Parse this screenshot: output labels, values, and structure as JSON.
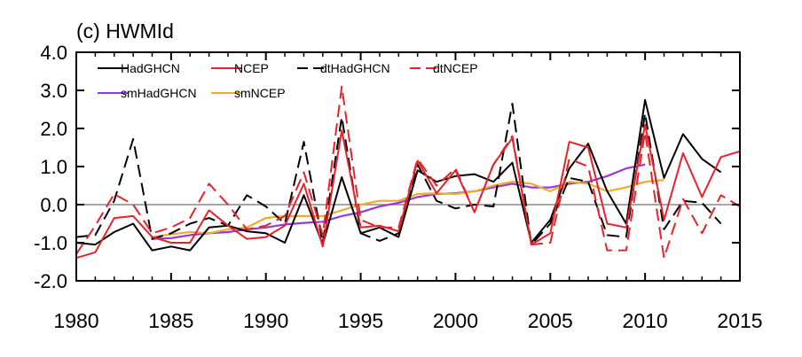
{
  "chart_data": {
    "type": "line",
    "title": "(c) HWMId",
    "xlabel": "",
    "ylabel": "",
    "xlim": [
      1980,
      2015
    ],
    "ylim": [
      -2.0,
      4.0
    ],
    "xticks": [
      1980,
      1985,
      1990,
      1995,
      2000,
      2005,
      2010,
      2015
    ],
    "xtick_labels": [
      "1980",
      "1985",
      "1990",
      "1995",
      "2000",
      "2005",
      "2010",
      "2015"
    ],
    "yticks": [
      -2.0,
      -1.0,
      0.0,
      1.0,
      2.0,
      3.0,
      4.0
    ],
    "ytick_labels": [
      "-2.0",
      "-1.0",
      "0.0",
      "1.0",
      "2.0",
      "3.0",
      "4.0"
    ],
    "zero_line": true,
    "grid": false,
    "legend_position": "top-left",
    "colors": {
      "black": "#000000",
      "red": "#e8222b",
      "purple": "#9a36e0",
      "orange": "#f0ab2a",
      "zero_line": "#888888"
    },
    "series": [
      {
        "name": "HadGHCN",
        "color": "#000000",
        "dash": "solid",
        "x": [
          1980,
          1981,
          1982,
          1983,
          1984,
          1985,
          1986,
          1987,
          1988,
          1989,
          1990,
          1991,
          1992,
          1993,
          1994,
          1995,
          1996,
          1997,
          1998,
          1999,
          2000,
          2001,
          2002,
          2003,
          2004,
          2005,
          2006,
          2007,
          2008,
          2009,
          2010,
          2011,
          2012,
          2013,
          2014
        ],
        "y": [
          -1.0,
          -1.05,
          -0.72,
          -0.5,
          -1.2,
          -1.1,
          -1.2,
          -0.6,
          -0.55,
          -0.7,
          -0.75,
          -1.0,
          0.25,
          -1.05,
          0.72,
          -0.75,
          -0.6,
          -0.85,
          0.9,
          0.6,
          0.75,
          0.8,
          0.6,
          1.1,
          -1.0,
          -0.4,
          0.95,
          1.6,
          0.35,
          -0.5,
          2.75,
          0.7,
          1.85,
          1.2,
          0.85
        ]
      },
      {
        "name": "NCEP",
        "color": "#e8222b",
        "dash": "solid",
        "x": [
          1980,
          1981,
          1982,
          1983,
          1984,
          1985,
          1986,
          1987,
          1988,
          1989,
          1990,
          1991,
          1992,
          1993,
          1994,
          1995,
          1996,
          1997,
          1998,
          1999,
          2000,
          2001,
          2002,
          2003,
          2004,
          2005,
          2006,
          2007,
          2008,
          2009,
          2010,
          2011,
          2012,
          2013,
          2014,
          2015
        ],
        "y": [
          -1.4,
          -1.25,
          -0.35,
          -0.3,
          -0.85,
          -1.0,
          -1.0,
          -0.15,
          -0.55,
          -0.9,
          -0.85,
          -0.55,
          0.55,
          -1.1,
          1.95,
          -0.6,
          -0.55,
          -0.7,
          1.15,
          0.3,
          0.9,
          -0.2,
          1.05,
          1.75,
          -1.05,
          -0.75,
          1.65,
          1.5,
          -0.5,
          -0.6,
          2.1,
          -0.4,
          1.35,
          0.2,
          1.25,
          1.4
        ]
      },
      {
        "name": "dtHadGHCN",
        "color": "#000000",
        "dash": "dashed",
        "x": [
          1980,
          1981,
          1982,
          1983,
          1984,
          1985,
          1986,
          1987,
          1988,
          1989,
          1990,
          1991,
          1992,
          1993,
          1994,
          1995,
          1996,
          1997,
          1998,
          1999,
          2000,
          2001,
          2002,
          2003,
          2004,
          2005,
          2006,
          2007,
          2008,
          2009,
          2010,
          2011,
          2012,
          2013,
          2014
        ],
        "y": [
          -0.85,
          -0.8,
          0.1,
          1.72,
          -0.9,
          -0.75,
          -0.5,
          -0.35,
          -0.55,
          0.25,
          -0.05,
          -0.5,
          1.65,
          -1.0,
          2.3,
          -0.75,
          -0.95,
          -0.75,
          1.05,
          0.1,
          -0.1,
          0.0,
          -0.05,
          2.65,
          -1.05,
          -0.5,
          0.7,
          0.6,
          -0.8,
          -0.85,
          2.4,
          -0.65,
          0.1,
          0.05,
          -0.5
        ]
      },
      {
        "name": "dtNCEP",
        "color": "#e8222b",
        "dash": "dashed",
        "x": [
          1980,
          1981,
          1982,
          1983,
          1984,
          1985,
          1986,
          1987,
          1988,
          1989,
          1990,
          1991,
          1992,
          1993,
          1994,
          1995,
          1996,
          1997,
          1998,
          1999,
          2000,
          2001,
          2002,
          2003,
          2004,
          2005,
          2006,
          2007,
          2008,
          2009,
          2010,
          2011,
          2012,
          2013,
          2014,
          2015
        ],
        "y": [
          -1.3,
          -0.55,
          0.28,
          0.0,
          -0.75,
          -0.6,
          -0.35,
          0.55,
          0.0,
          -0.65,
          -0.55,
          -0.3,
          0.85,
          -0.8,
          3.1,
          -0.4,
          -0.6,
          -0.6,
          1.2,
          0.5,
          0.95,
          -0.2,
          1.05,
          1.8,
          -1.05,
          -1.0,
          1.2,
          1.0,
          -1.2,
          -1.2,
          1.9,
          -1.4,
          0.15,
          -0.75,
          0.25,
          -0.05
        ]
      },
      {
        "name": "smHadGHCN",
        "color": "#9a36e0",
        "dash": "solid",
        "x": [
          1984,
          1985,
          1986,
          1987,
          1988,
          1989,
          1990,
          1991,
          1992,
          1993,
          1994,
          1995,
          1996,
          1997,
          1998,
          1999,
          2000,
          2001,
          2002,
          2003,
          2004,
          2005,
          2006,
          2007,
          2008,
          2009,
          2010
        ],
        "y": [
          -0.9,
          -0.88,
          -0.8,
          -0.75,
          -0.72,
          -0.65,
          -0.6,
          -0.52,
          -0.48,
          -0.45,
          -0.3,
          -0.2,
          -0.05,
          0.05,
          0.2,
          0.28,
          0.3,
          0.35,
          0.45,
          0.55,
          0.45,
          0.45,
          0.55,
          0.6,
          0.75,
          0.95,
          1.05
        ]
      },
      {
        "name": "smNCEP",
        "color": "#f0ab2a",
        "dash": "solid",
        "x": [
          1984,
          1985,
          1986,
          1987,
          1988,
          1989,
          1990,
          1991,
          1992,
          1993,
          1994,
          1995,
          1996,
          1997,
          1998,
          1999,
          2000,
          2001,
          2002,
          2003,
          2004,
          2005,
          2006,
          2007,
          2008,
          2009,
          2010,
          2011
        ],
        "y": [
          -0.85,
          -0.78,
          -0.72,
          -0.75,
          -0.65,
          -0.6,
          -0.35,
          -0.3,
          -0.3,
          -0.3,
          -0.15,
          0.0,
          0.1,
          0.1,
          0.28,
          0.3,
          0.28,
          0.35,
          0.5,
          0.6,
          0.55,
          0.35,
          0.6,
          0.55,
          0.35,
          0.45,
          0.6,
          0.65
        ]
      }
    ]
  }
}
